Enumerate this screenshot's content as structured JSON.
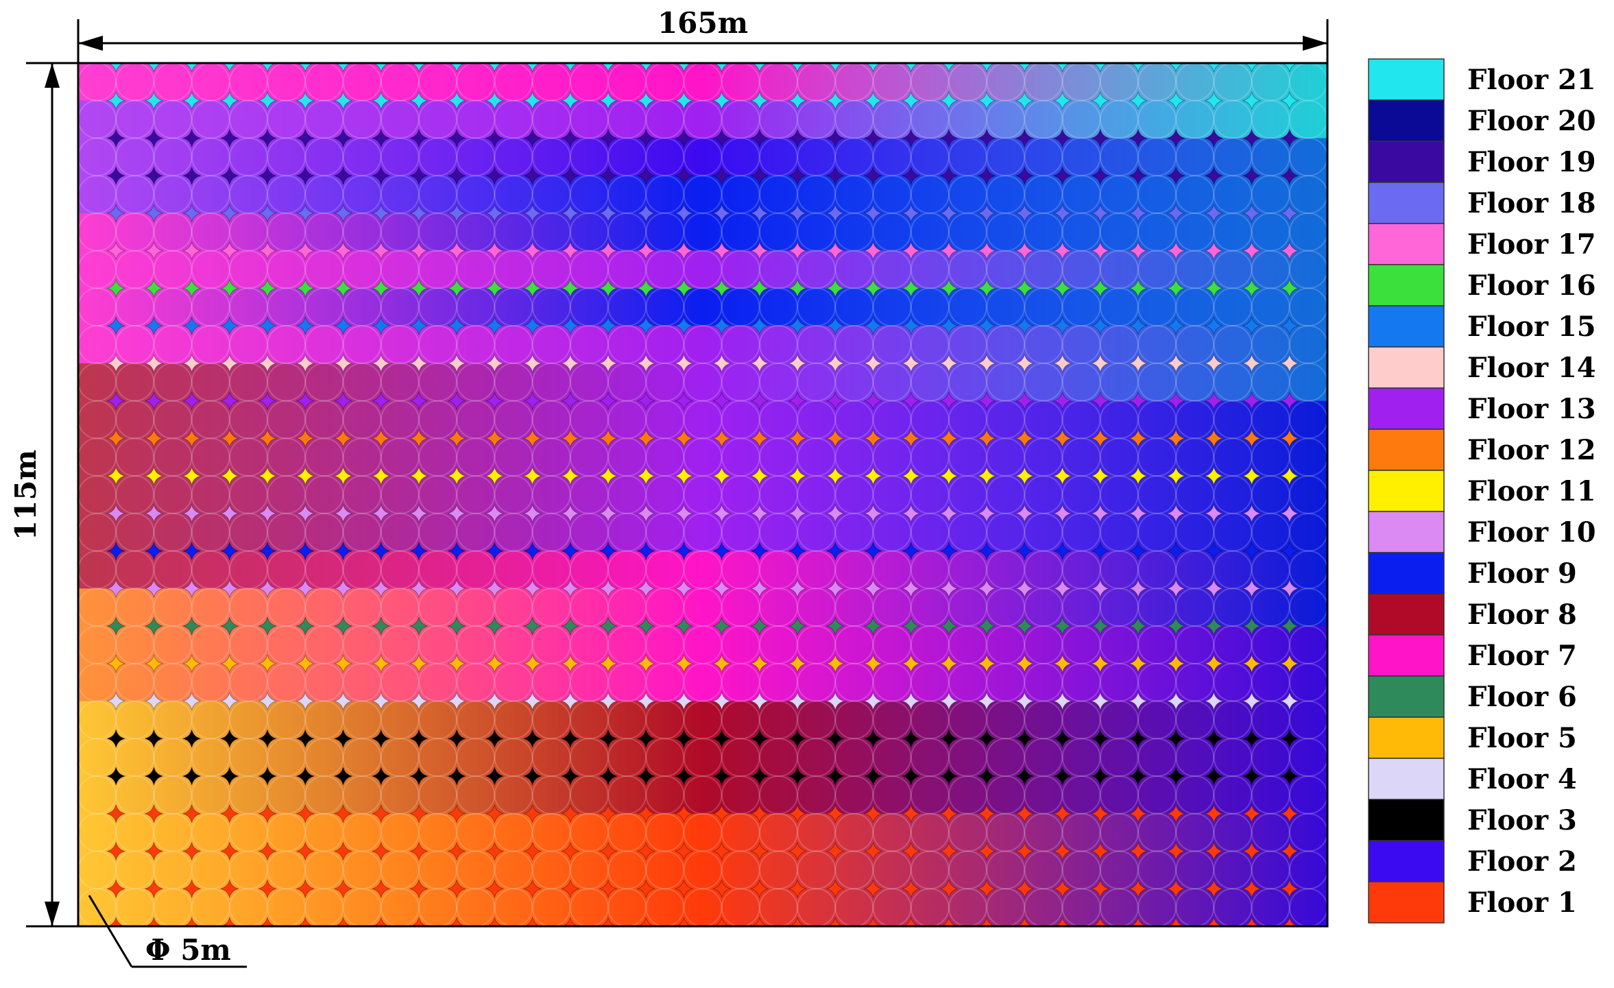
{
  "dimensions": {
    "width_label": "165m",
    "height_label": "115m",
    "diameter_label": "Φ 5m"
  },
  "grid": {
    "columns": 33,
    "rows": 23
  },
  "legend": [
    {
      "label": "Floor 21",
      "color": "#22E6EE"
    },
    {
      "label": "Floor 20",
      "color": "#0A0A96"
    },
    {
      "label": "Floor 19",
      "color": "#3A0AA0"
    },
    {
      "label": "Floor 18",
      "color": "#6A6AF2"
    },
    {
      "label": "Floor 17",
      "color": "#FF66D8"
    },
    {
      "label": "Floor 16",
      "color": "#3CE03C"
    },
    {
      "label": "Floor 15",
      "color": "#1478F0"
    },
    {
      "label": "Floor 14",
      "color": "#FFCCCC"
    },
    {
      "label": "Floor 13",
      "color": "#A020F0"
    },
    {
      "label": "Floor 12",
      "color": "#FF7A0E"
    },
    {
      "label": "Floor 11",
      "color": "#FFF000"
    },
    {
      "label": "Floor 10",
      "color": "#DA8AF2"
    },
    {
      "label": "Floor 9",
      "color": "#0A1EF0"
    },
    {
      "label": "Floor 8",
      "color": "#B00A28"
    },
    {
      "label": "Floor 7",
      "color": "#FF14C8"
    },
    {
      "label": "Floor 6",
      "color": "#2E8A5A"
    },
    {
      "label": "Floor 5",
      "color": "#FFBA08"
    },
    {
      "label": "Floor 4",
      "color": "#DCD6F8"
    },
    {
      "label": "Floor 3",
      "color": "#000000"
    },
    {
      "label": "Floor 2",
      "color": "#3C0AF0"
    },
    {
      "label": "Floor 1",
      "color": "#FF3A0A"
    }
  ]
}
